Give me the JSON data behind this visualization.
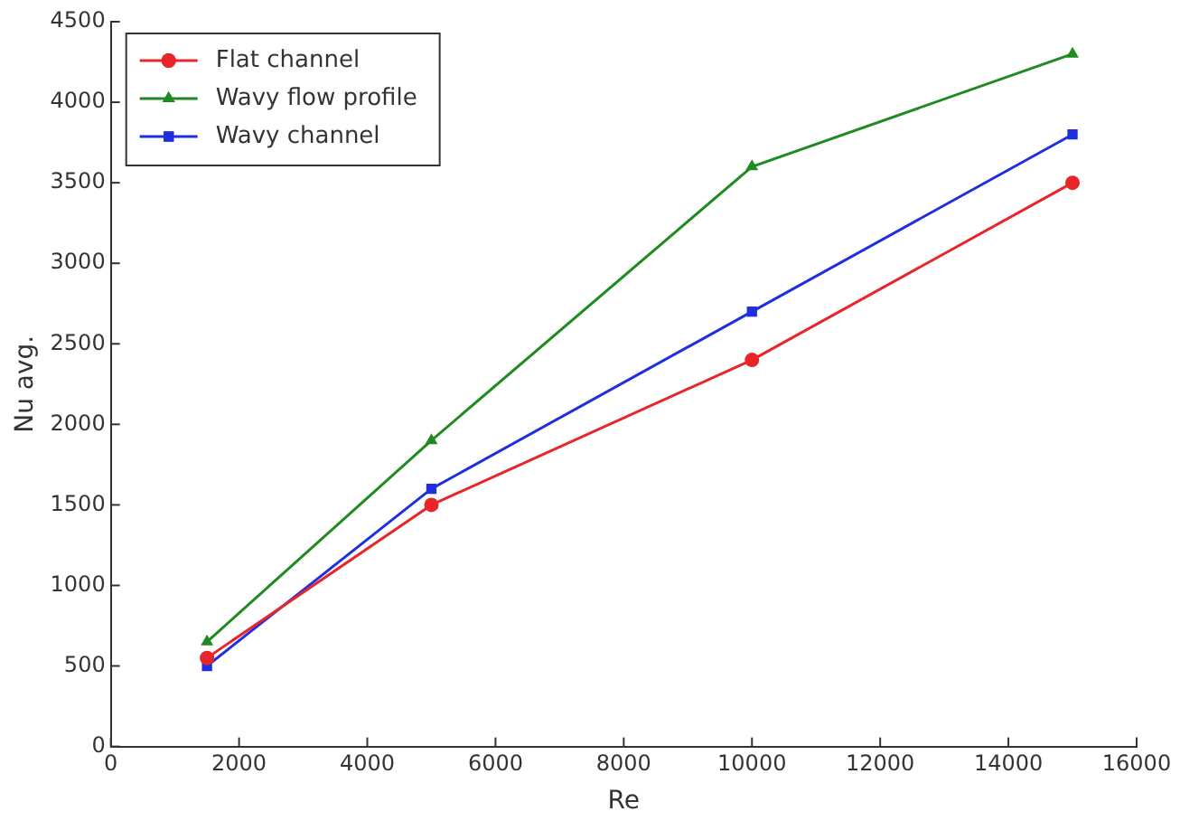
{
  "chart_data": {
    "type": "line",
    "xlabel": "Re",
    "ylabel": "Nu avg.",
    "x": [
      1500,
      5000,
      10000,
      15000
    ],
    "series": [
      {
        "name": "Flat channel",
        "color": "#e8262a",
        "marker": "circle",
        "values": [
          550,
          1500,
          2400,
          3500
        ]
      },
      {
        "name": "Wavy flow profile",
        "color": "#1f8a1f",
        "marker": "triangle",
        "values": [
          650,
          1900,
          3600,
          4300
        ]
      },
      {
        "name": "Wavy channel",
        "color": "#1f2fe0",
        "marker": "square",
        "values": [
          500,
          1600,
          2700,
          3800
        ]
      }
    ],
    "xlim": [
      0,
      16000
    ],
    "xticks": [
      0,
      2000,
      4000,
      6000,
      8000,
      10000,
      12000,
      14000,
      16000
    ],
    "ylim": [
      0,
      4500
    ],
    "yticks": [
      0,
      500,
      1000,
      1500,
      2000,
      2500,
      3000,
      3500,
      4000,
      4500
    ],
    "grid": false,
    "legend": "top left",
    "line_style": "solid"
  }
}
